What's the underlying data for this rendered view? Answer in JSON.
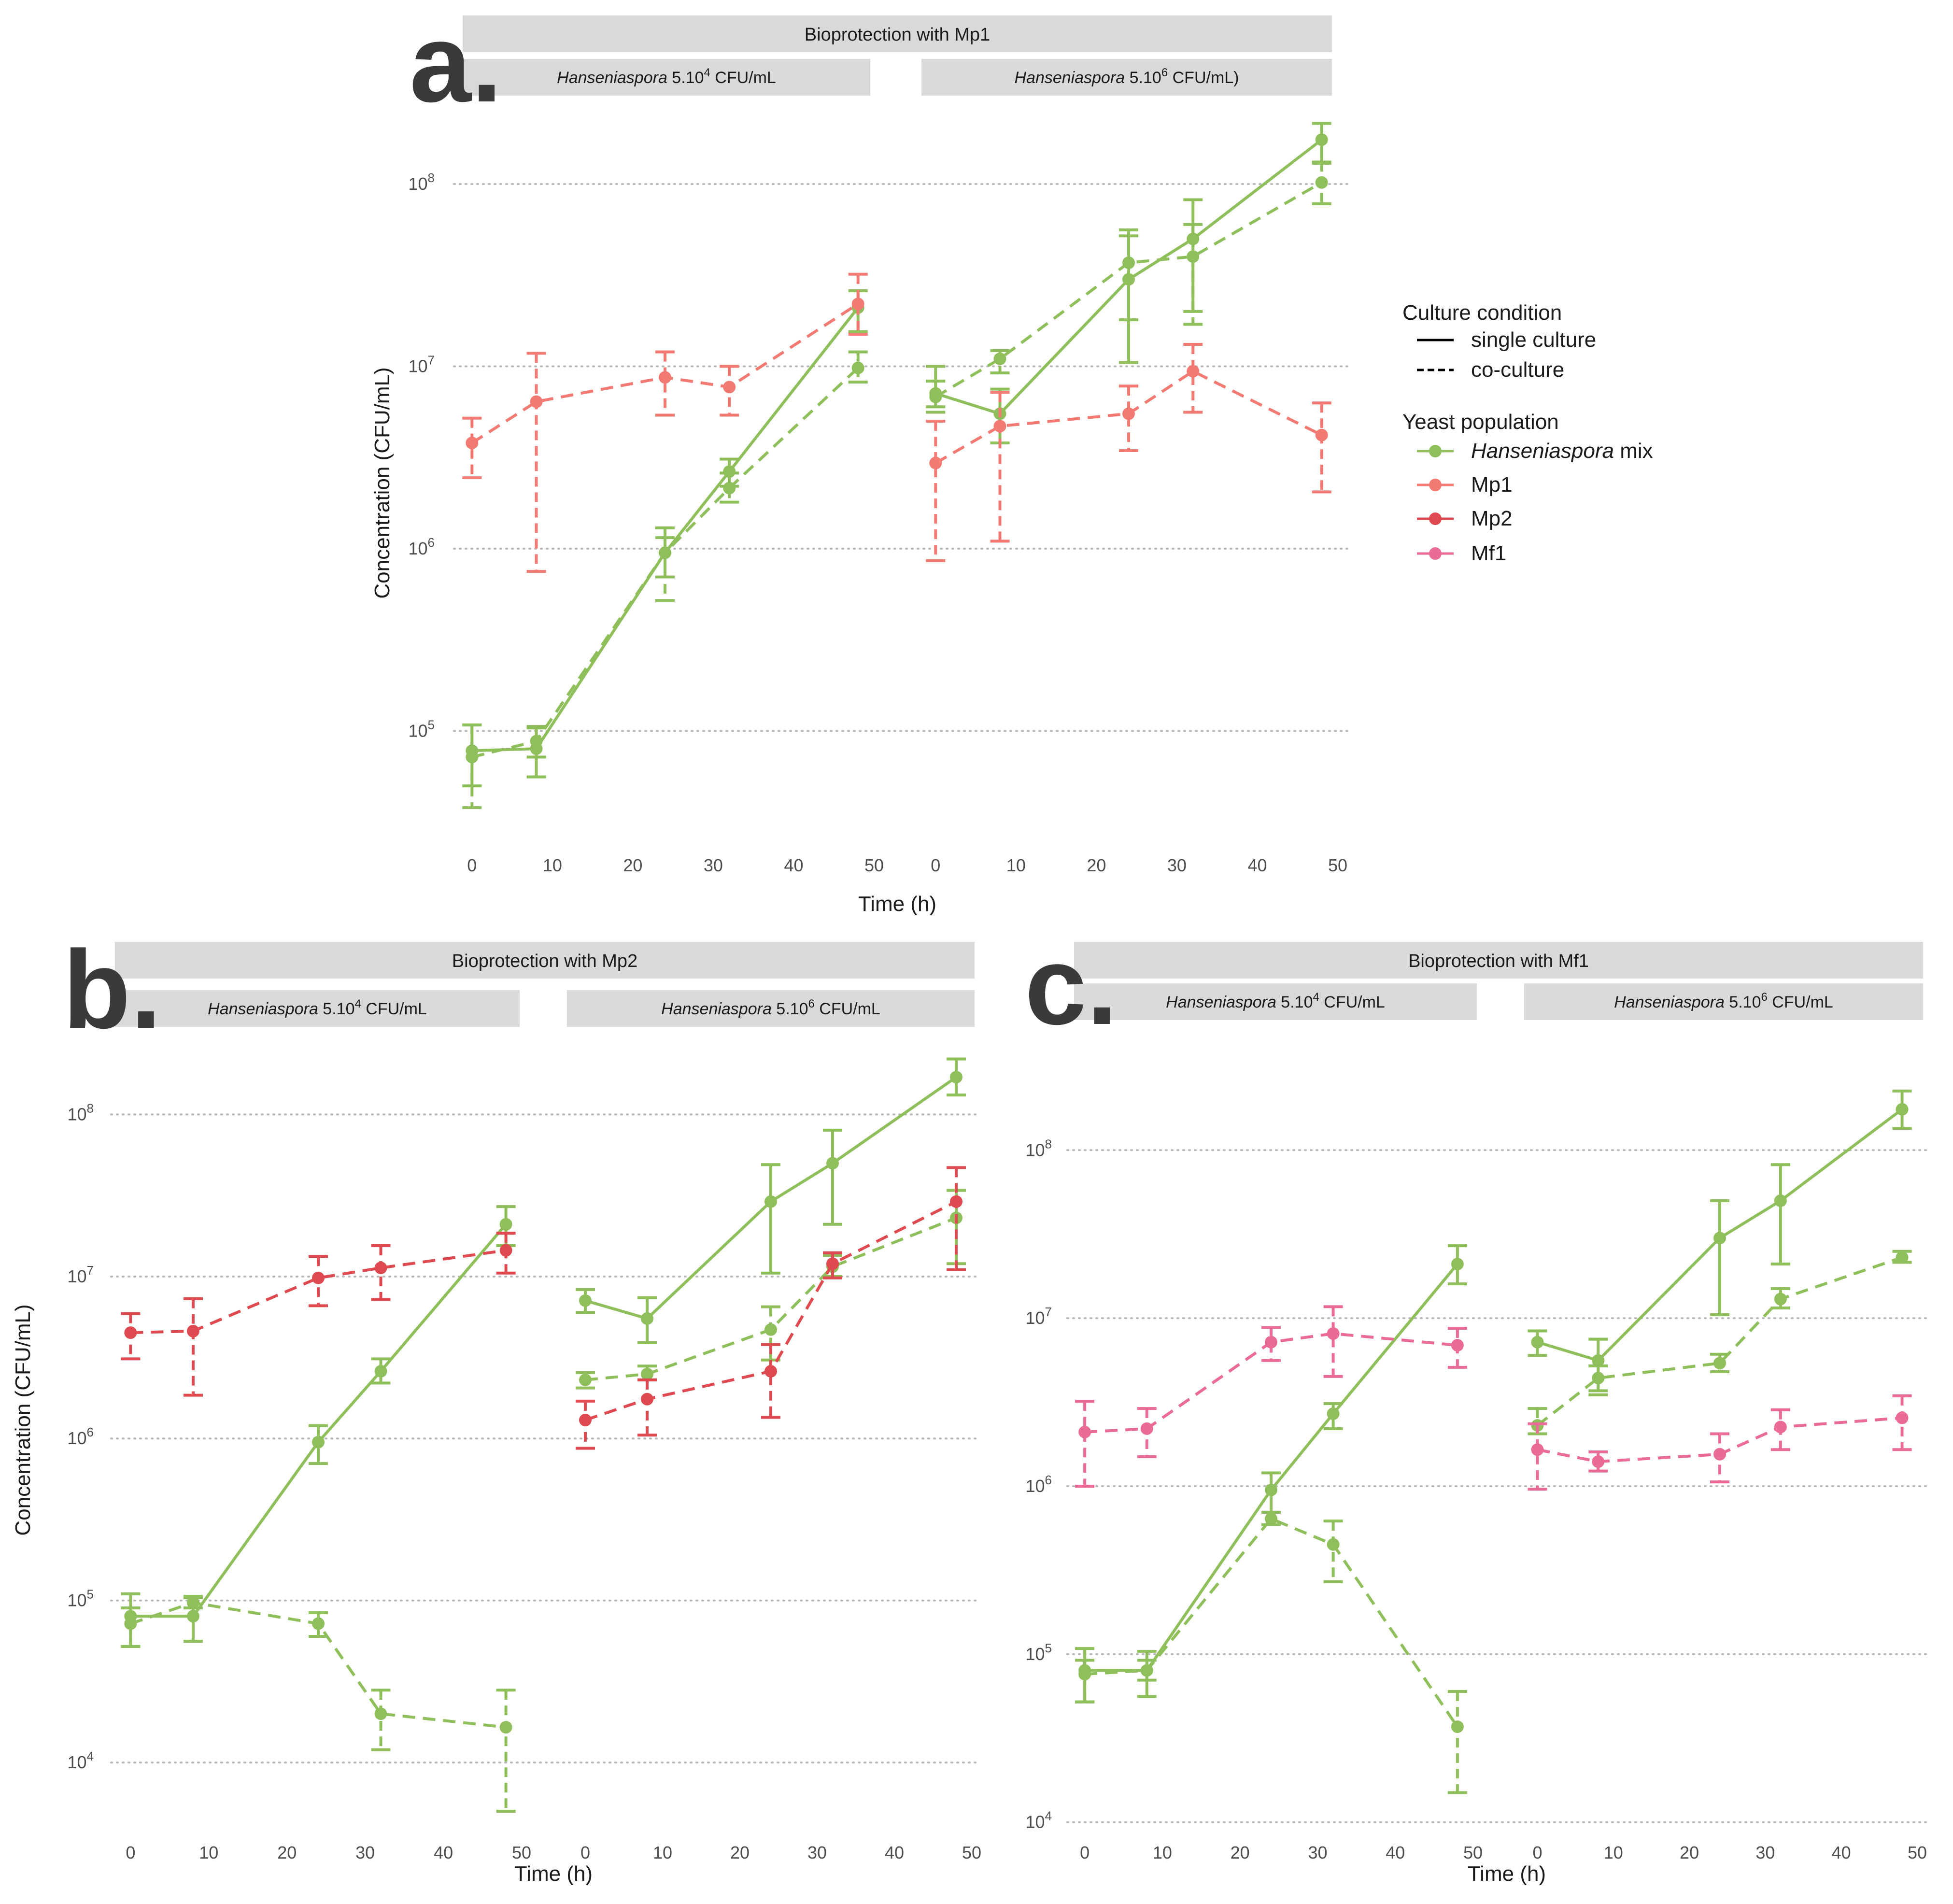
{
  "colors": {
    "hanseniaspora_mix": "#8fbf5a",
    "mp1": "#f27a72",
    "mp2": "#de4a50",
    "mf1": "#ea6b96"
  },
  "legend": {
    "culture_title": "Culture condition",
    "single": "single culture",
    "co": "co-culture",
    "yeast_title": "Yeast population",
    "hanseniaspora_italic": "Hanseniaspora",
    "hanseniaspora_rest": " mix",
    "mp1": "Mp1",
    "mp2": "Mp2",
    "mf1": "Mf1"
  },
  "common": {
    "ylabel": "Concentration (CFU/mL)",
    "xlabel": "Time (h)",
    "x_ticks": [
      "0",
      "10",
      "20",
      "30",
      "40",
      "50"
    ],
    "x_range": [
      -2,
      50
    ],
    "exp_labels": {
      "4": "4",
      "5": "5",
      "6": "6",
      "7": "7",
      "8": "8"
    },
    "base": "10"
  },
  "chart_data": [
    {
      "type": "line",
      "letter": "a.",
      "title": "Bioprotection with Mp1",
      "log_y_range": [
        4.4,
        8.4
      ],
      "y_exponents": [
        "5",
        "6",
        "7",
        "8"
      ],
      "subpanels": [
        {
          "italic": "Hanseniaspora",
          "strip": " 5.10",
          "sup": "4",
          "tail": " CFU/mL",
          "series": [
            {
              "population": "hanseniaspora_mix",
              "condition": "single",
              "x": [
                0,
                8,
                24,
                32,
                48
              ],
              "y": [
                78000,
                80000,
                950000,
                2650000,
                21000000
              ],
              "lo": [
                50000,
                56000,
                700000,
                2200000,
                15500000
              ],
              "hi": [
                108000,
                104000,
                1300000,
                3100000,
                26000000
              ]
            },
            {
              "population": "hanseniaspora_mix",
              "condition": "co",
              "x": [
                0,
                8,
                24,
                32,
                48
              ],
              "y": [
                72000,
                88000,
                950000,
                2150000,
                9800000
              ],
              "lo": [
                38000,
                72000,
                520000,
                1800000,
                8200000
              ],
              "hi": [
                108000,
                106000,
                1150000,
                2600000,
                12000000
              ]
            },
            {
              "population": "mp1",
              "condition": "co",
              "x": [
                0,
                8,
                24,
                32,
                48
              ],
              "y": [
                3800000,
                6400000,
                8700000,
                7700000,
                22000000
              ],
              "lo": [
                2450000,
                750000,
                5400000,
                5400000,
                15000000
              ],
              "hi": [
                5200000,
                11800000,
                12000000,
                10000000,
                32000000
              ]
            }
          ]
        },
        {
          "italic": "Hanseniaspora",
          "strip": " 5.10",
          "sup": "6",
          "tail": " CFU/mL)",
          "series": [
            {
              "population": "hanseniaspora_mix",
              "condition": "single",
              "x": [
                0,
                8,
                24,
                32,
                48
              ],
              "y": [
                7100000,
                5500000,
                30000000,
                50000000,
                175000000
              ],
              "lo": [
                6000000,
                3800000,
                10500000,
                20000000,
                130000000
              ],
              "hi": [
                10000000,
                7500000,
                52000000,
                82000000,
                215000000
              ]
            },
            {
              "population": "hanseniaspora_mix",
              "condition": "co",
              "x": [
                0,
                8,
                24,
                32,
                48
              ],
              "y": [
                6800000,
                11000000,
                37000000,
                40000000,
                102000000
              ],
              "lo": [
                5600000,
                9200000,
                18000000,
                17000000,
                78000000
              ],
              "hi": [
                8300000,
                12200000,
                56000000,
                60000000,
                132000000
              ]
            },
            {
              "population": "mp1",
              "condition": "co",
              "x": [
                0,
                8,
                24,
                32,
                48
              ],
              "y": [
                2950000,
                4700000,
                5500000,
                9400000,
                4200000
              ],
              "lo": [
                860000,
                1100000,
                3450000,
                5600000,
                2050000
              ],
              "hi": [
                5000000,
                7200000,
                7800000,
                13200000,
                6300000
              ]
            }
          ]
        }
      ]
    },
    {
      "type": "line",
      "letter": "b.",
      "title": "Bioprotection with Mp2",
      "log_y_range": [
        3.55,
        8.35
      ],
      "y_exponents": [
        "4",
        "5",
        "6",
        "7",
        "8"
      ],
      "subpanels": [
        {
          "italic": "Hanseniaspora",
          "strip": " 5.10",
          "sup": "4",
          "tail": " CFU/mL",
          "series": [
            {
              "population": "hanseniaspora_mix",
              "condition": "single",
              "x": [
                0,
                8,
                24,
                32,
                48
              ],
              "y": [
                80000,
                80000,
                950000,
                2600000,
                21000000
              ],
              "lo": [
                52000,
                56000,
                700000,
                2200000,
                15500000
              ],
              "hi": [
                110000,
                104000,
                1200000,
                3100000,
                27000000
              ]
            },
            {
              "population": "hanseniaspora_mix",
              "condition": "co",
              "x": [
                0,
                8,
                24,
                32,
                48
              ],
              "y": [
                72000,
                97000,
                72000,
                20000,
                16500
              ],
              "lo": [
                52000,
                90000,
                60000,
                12000,
                5000
              ],
              "hi": [
                90000,
                106000,
                84000,
                28000,
                28000
              ]
            },
            {
              "population": "mp2",
              "condition": "co",
              "x": [
                0,
                8,
                24,
                32,
                48
              ],
              "y": [
                4500000,
                4600000,
                9800000,
                11300000,
                14500000
              ],
              "lo": [
                3100000,
                1850000,
                6600000,
                7200000,
                10500000
              ],
              "hi": [
                5900000,
                7300000,
                13300000,
                15500000,
                18500000
              ]
            }
          ]
        },
        {
          "italic": "Hanseniaspora",
          "strip": " 5.10",
          "sup": "6",
          "tail": " CFU/mL",
          "series": [
            {
              "population": "hanseniaspora_mix",
              "condition": "single",
              "x": [
                0,
                8,
                24,
                32,
                48
              ],
              "y": [
                7100000,
                5500000,
                29000000,
                50000000,
                170000000
              ],
              "lo": [
                6000000,
                3900000,
                10500000,
                21000000,
                132000000
              ],
              "hi": [
                8300000,
                7400000,
                49000000,
                80000000,
                220000000
              ]
            },
            {
              "population": "hanseniaspora_mix",
              "condition": "co",
              "x": [
                0,
                8,
                24,
                32,
                48
              ],
              "y": [
                2300000,
                2500000,
                4700000,
                11500000,
                23000000
              ],
              "lo": [
                2050000,
                2300000,
                3050000,
                10000000,
                12000000
              ],
              "hi": [
                2550000,
                2800000,
                6500000,
                13500000,
                34000000
              ]
            },
            {
              "population": "mp2",
              "condition": "co",
              "x": [
                0,
                8,
                24,
                32,
                48
              ],
              "y": [
                1300000,
                1750000,
                2600000,
                12000000,
                29000000
              ],
              "lo": [
                870000,
                1050000,
                1350000,
                9800000,
                11000000
              ],
              "hi": [
                1700000,
                2300000,
                3800000,
                14000000,
                47000000
              ]
            }
          ]
        }
      ]
    },
    {
      "type": "line",
      "letter": "c.",
      "title": "Bioprotection with Mf1",
      "log_y_range": [
        3.95,
        8.55
      ],
      "y_exponents": [
        "4",
        "5",
        "6",
        "7",
        "8"
      ],
      "subpanels": [
        {
          "italic": "Hanseniaspora",
          "strip": " 5.10",
          "sup": "4",
          "tail": " CFU/mL",
          "series": [
            {
              "population": "hanseniaspora_mix",
              "condition": "single",
              "x": [
                0,
                8,
                24,
                32,
                48
              ],
              "y": [
                80000,
                80000,
                950000,
                2700000,
                21000000
              ],
              "lo": [
                52000,
                56000,
                700000,
                2200000,
                16000000
              ],
              "hi": [
                108000,
                104000,
                1200000,
                3100000,
                27000000
              ]
            },
            {
              "population": "hanseniaspora_mix",
              "condition": "co",
              "x": [
                0,
                8,
                24,
                32,
                48
              ],
              "y": [
                76000,
                80000,
                640000,
                450000,
                37000
              ],
              "lo": [
                52000,
                70000,
                590000,
                270000,
                15000
              ],
              "hi": [
                92000,
                92000,
                700000,
                620000,
                60000
              ]
            },
            {
              "population": "mf1",
              "condition": "co",
              "x": [
                0,
                8,
                24,
                32,
                48
              ],
              "y": [
                2100000,
                2200000,
                7200000,
                8100000,
                6900000
              ],
              "lo": [
                1000000,
                1500000,
                5600000,
                4500000,
                5100000
              ],
              "hi": [
                3200000,
                2900000,
                8800000,
                11700000,
                8700000
              ]
            }
          ]
        },
        {
          "italic": "Hanseniaspora",
          "strip": " 5.10",
          "sup": "6",
          "tail": " CFU/mL",
          "series": [
            {
              "population": "hanseniaspora_mix",
              "condition": "single",
              "x": [
                0,
                8,
                24,
                32,
                48
              ],
              "y": [
                7200000,
                5600000,
                30000000,
                50000000,
                175000000
              ],
              "lo": [
                6000000,
                3700000,
                10500000,
                21000000,
                135000000
              ],
              "hi": [
                8400000,
                7500000,
                50000000,
                82000000,
                225000000
              ]
            },
            {
              "population": "hanseniaspora_mix",
              "condition": "co",
              "x": [
                0,
                8,
                24,
                32,
                48
              ],
              "y": [
                2300000,
                4400000,
                5400000,
                13000000,
                23000000
              ],
              "lo": [
                2050000,
                3500000,
                4800000,
                11500000,
                21500000
              ],
              "hi": [
                2900000,
                5200000,
                6100000,
                15000000,
                25000000
              ]
            },
            {
              "population": "mf1",
              "condition": "co",
              "x": [
                0,
                8,
                24,
                32,
                48
              ],
              "y": [
                1650000,
                1400000,
                1550000,
                2250000,
                2550000
              ],
              "lo": [
                960000,
                1230000,
                1060000,
                1650000,
                1650000
              ],
              "hi": [
                2350000,
                1600000,
                2050000,
                2850000,
                3450000
              ]
            }
          ]
        }
      ]
    }
  ]
}
